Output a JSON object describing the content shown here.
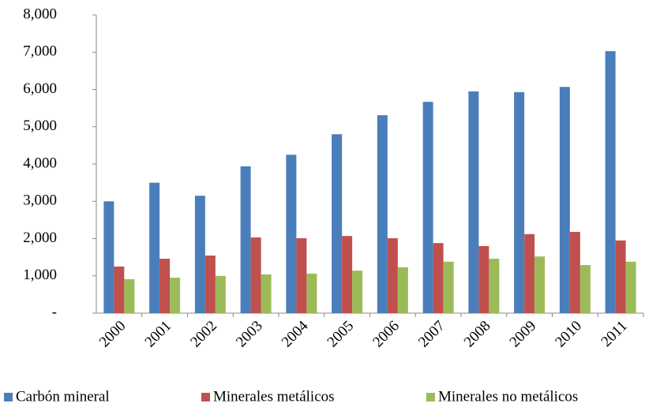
{
  "chart_data": {
    "type": "bar",
    "categories": [
      "2000",
      "2001",
      "2002",
      "2003",
      "2004",
      "2005",
      "2006",
      "2007",
      "2008",
      "2009",
      "2010",
      "2011"
    ],
    "series": [
      {
        "name": "Carbón mineral",
        "color": "#4a7ebb",
        "values": [
          3000,
          3500,
          3150,
          3940,
          4250,
          4800,
          5310,
          5670,
          5950,
          5930,
          6070,
          7030
        ]
      },
      {
        "name": "Minerales metálicos",
        "color": "#c0504d",
        "values": [
          1250,
          1460,
          1545,
          2030,
          2010,
          2070,
          2010,
          1880,
          1800,
          2120,
          2180,
          1950
        ]
      },
      {
        "name": "Minerales no metálicos",
        "color": "#9bbb59",
        "values": [
          910,
          950,
          1000,
          1040,
          1060,
          1140,
          1230,
          1380,
          1460,
          1520,
          1290,
          1380
        ]
      }
    ],
    "ylim": [
      0,
      8000
    ],
    "yticks": [
      {
        "value": 0,
        "label": "-"
      },
      {
        "value": 1000,
        "label": "1,000"
      },
      {
        "value": 2000,
        "label": "2,000"
      },
      {
        "value": 3000,
        "label": "3,000"
      },
      {
        "value": 4000,
        "label": "4,000"
      },
      {
        "value": 5000,
        "label": "5,000"
      },
      {
        "value": 6000,
        "label": "6,000"
      },
      {
        "value": 7000,
        "label": "7,000"
      },
      {
        "value": 8000,
        "label": "8,000"
      }
    ],
    "legend": "bottom"
  }
}
